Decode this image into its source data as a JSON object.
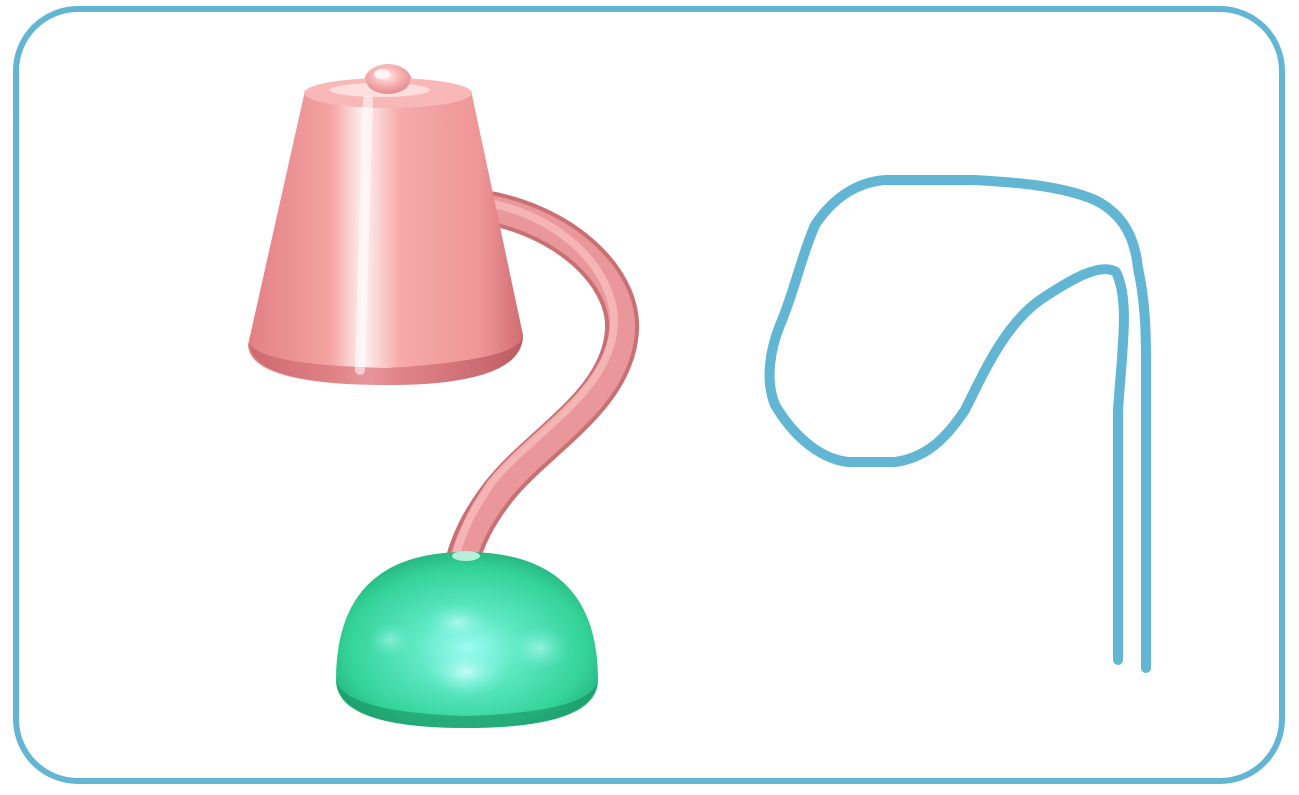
{
  "colors": {
    "frame": "#62b6d4",
    "background": "#ffffff",
    "lamp_shade": "#f4a3a2",
    "lamp_shade_highlight": "#fff1f1",
    "lamp_shade_shadow": "#cf6d72",
    "lamp_neck": "#e9979a",
    "lamp_base": "#34d39a",
    "lamp_base_highlight": "#9ffcf6",
    "lamp_base_shadow": "#1c9c6b",
    "sketch_stroke": "#62b6d4"
  },
  "objects": {
    "rendered_model": "desk-lamp-3d-model",
    "sketch": "lamp-neck-outline-sketch"
  }
}
